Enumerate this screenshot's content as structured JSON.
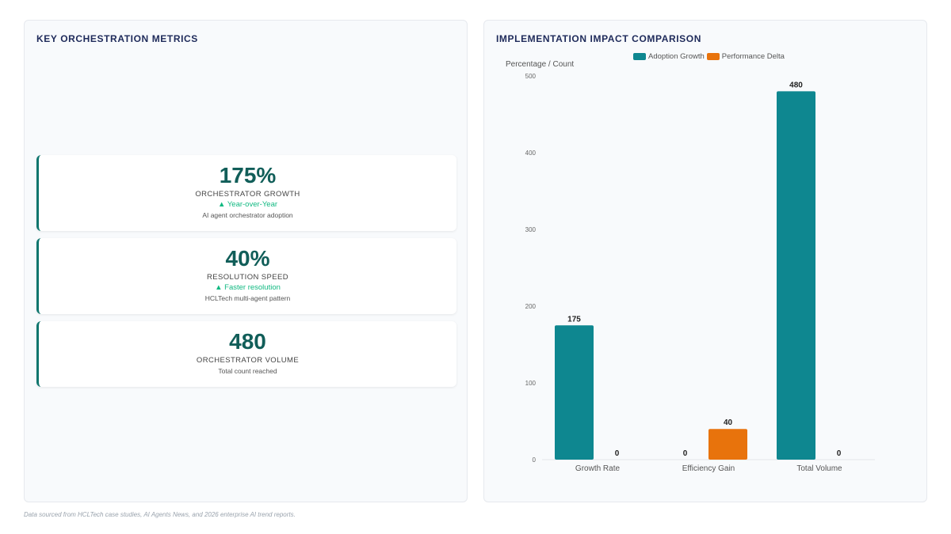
{
  "left_panel": {
    "title": "KEY ORCHESTRATION METRICS",
    "cards": [
      {
        "value": "175%",
        "label": "ORCHESTRATOR GROWTH",
        "trend": "▲ Year-over-Year",
        "description": "AI agent orchestrator adoption"
      },
      {
        "value": "40%",
        "label": "RESOLUTION SPEED",
        "trend": "▲ Faster resolution",
        "description": "HCLTech multi-agent pattern"
      },
      {
        "value": "480",
        "label": "ORCHESTRATOR VOLUME",
        "description": "Total count reached"
      }
    ]
  },
  "right_panel": {
    "title": "IMPLEMENTATION IMPACT COMPARISON"
  },
  "chart_data": {
    "type": "bar",
    "categories": [
      "Growth Rate",
      "Efficiency Gain",
      "Total Volume"
    ],
    "series": [
      {
        "name": "Adoption Growth",
        "values": [
          175,
          0,
          480
        ],
        "color": "#0e8790"
      },
      {
        "name": "Performance Delta",
        "values": [
          0,
          40,
          0
        ],
        "color": "#e8730c"
      }
    ],
    "ylabel": "Percentage / Count",
    "ylim": [
      0,
      500
    ],
    "yticks": [
      0,
      100,
      200,
      300,
      400,
      500
    ],
    "grid": false,
    "legend": "top-center"
  },
  "footer": {
    "source": "Data sourced from HCLTech case studies, AI Agents News, and 2026 enterprise AI trend reports."
  }
}
